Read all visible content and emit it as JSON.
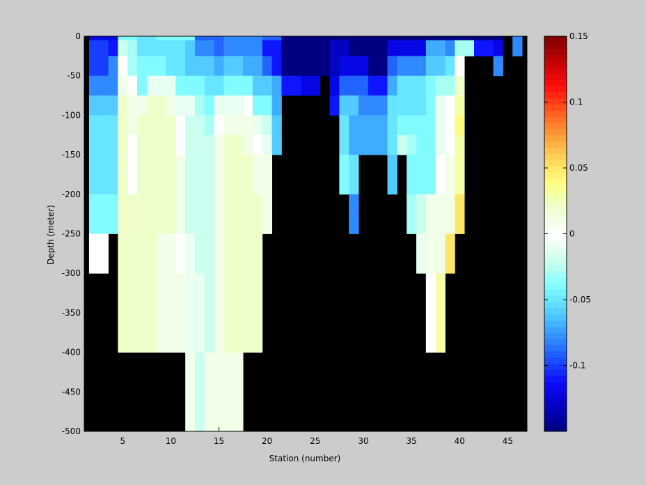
{
  "chart_data": {
    "type": "heatmap",
    "title": "",
    "xlabel": "Station (number)",
    "ylabel": "Depth (meter)",
    "xlim": [
      1,
      47
    ],
    "ylim": [
      -500,
      0
    ],
    "x_ticks": [
      5,
      10,
      15,
      20,
      25,
      30,
      35,
      40,
      45
    ],
    "y_ticks": [
      0,
      -50,
      -100,
      -150,
      -200,
      -250,
      -300,
      -350,
      -400,
      -450,
      -500
    ],
    "colorbar": {
      "range": [
        -0.15,
        0.15
      ],
      "ticks": [
        0.15,
        0.1,
        0.05,
        0,
        -0.05,
        -0.1
      ],
      "tick_labels": [
        "0.15",
        "0.1",
        "0.05",
        "0",
        "-0.05",
        "-0.1"
      ],
      "colormap": "jet"
    },
    "missing_color": "#000000",
    "grid": false,
    "stations": [
      2,
      3,
      4,
      5,
      6,
      7,
      8,
      9,
      10,
      11,
      12,
      13,
      14,
      15,
      16,
      17,
      18,
      19,
      20,
      21,
      22,
      23,
      24,
      25,
      26,
      27,
      28,
      29,
      30,
      31,
      32,
      33,
      34,
      35,
      36,
      37,
      38,
      39,
      40,
      41,
      42,
      43,
      44,
      45,
      46
    ],
    "depth_rows_top": [
      0,
      -5,
      -25,
      -50,
      -75,
      -100,
      -125,
      -150,
      -175,
      -200,
      -225,
      -250,
      -300,
      -400
    ],
    "depth_rows_bottom": [
      -5,
      -25,
      -50,
      -75,
      -100,
      -125,
      -150,
      -175,
      -200,
      -225,
      -250,
      -300,
      -400,
      -500
    ],
    "values": [
      [
        -0.12,
        -0.12,
        -0.12,
        -0.04,
        -0.04,
        -0.05,
        -0.05,
        -0.04,
        -0.04,
        -0.04,
        -0.04,
        -0.09,
        -0.09,
        -0.09,
        -0.08,
        -0.08,
        -0.08,
        -0.08,
        -0.09,
        -0.09,
        -0.15,
        -0.15,
        -0.15,
        -0.15,
        -0.15,
        -0.15,
        -0.15,
        -0.15,
        -0.15,
        -0.15,
        -0.15,
        -0.15,
        -0.15,
        -0.15,
        -0.15,
        -0.15,
        -0.15,
        -0.15,
        -0.15,
        -0.15,
        -0.15,
        -0.15,
        -0.15,
        null,
        -0.08
      ],
      [
        -0.1,
        -0.1,
        -0.11,
        -0.02,
        -0.03,
        -0.05,
        -0.05,
        -0.05,
        -0.05,
        -0.05,
        -0.06,
        -0.08,
        -0.08,
        -0.09,
        -0.08,
        -0.08,
        -0.08,
        -0.08,
        -0.11,
        -0.11,
        -0.15,
        -0.15,
        -0.15,
        -0.15,
        -0.15,
        -0.13,
        -0.13,
        -0.15,
        -0.15,
        -0.15,
        -0.15,
        -0.12,
        -0.12,
        -0.12,
        -0.12,
        -0.07,
        -0.07,
        -0.08,
        -0.03,
        -0.03,
        -0.11,
        -0.11,
        -0.12,
        null,
        -0.08
      ],
      [
        -0.1,
        -0.1,
        -0.08,
        0.0,
        -0.03,
        -0.04,
        -0.04,
        -0.04,
        -0.05,
        -0.05,
        -0.06,
        -0.06,
        -0.06,
        -0.07,
        -0.06,
        -0.06,
        -0.07,
        -0.07,
        -0.09,
        -0.11,
        -0.15,
        -0.15,
        -0.15,
        -0.15,
        -0.15,
        -0.13,
        -0.12,
        -0.12,
        -0.12,
        -0.15,
        -0.15,
        -0.09,
        -0.08,
        -0.08,
        -0.08,
        -0.06,
        -0.06,
        -0.05,
        0.0,
        null,
        null,
        null,
        -0.08,
        null,
        null
      ],
      [
        -0.08,
        -0.08,
        -0.08,
        0.01,
        0.0,
        -0.04,
        -0.01,
        -0.01,
        -0.01,
        -0.04,
        -0.04,
        -0.04,
        -0.05,
        -0.05,
        -0.04,
        -0.04,
        -0.04,
        -0.06,
        -0.06,
        -0.07,
        -0.11,
        -0.11,
        -0.12,
        -0.12,
        null,
        -0.12,
        -0.09,
        -0.09,
        -0.09,
        -0.11,
        -0.11,
        -0.07,
        -0.05,
        -0.05,
        -0.05,
        -0.04,
        -0.03,
        -0.03,
        0.02,
        null,
        null,
        null,
        null,
        null,
        null
      ],
      [
        -0.06,
        -0.06,
        -0.06,
        0.02,
        0.01,
        0.01,
        0.02,
        0.02,
        0.01,
        -0.01,
        -0.01,
        -0.03,
        -0.04,
        -0.01,
        -0.01,
        -0.01,
        0.0,
        -0.04,
        -0.04,
        -0.07,
        null,
        null,
        null,
        null,
        null,
        -0.11,
        -0.06,
        -0.06,
        -0.08,
        -0.08,
        -0.08,
        -0.05,
        -0.05,
        -0.05,
        -0.05,
        -0.04,
        -0.01,
        0.0,
        0.03,
        null,
        null,
        null,
        null,
        null,
        null
      ],
      [
        -0.05,
        -0.05,
        -0.05,
        0.02,
        0.01,
        0.02,
        0.02,
        0.02,
        0.02,
        0.0,
        -0.02,
        -0.02,
        -0.03,
        0.0,
        0.01,
        0.01,
        0.01,
        -0.01,
        -0.02,
        -0.06,
        null,
        null,
        null,
        null,
        null,
        null,
        -0.05,
        -0.07,
        -0.07,
        -0.07,
        -0.07,
        -0.05,
        -0.04,
        -0.04,
        -0.04,
        -0.04,
        -0.01,
        0.0,
        0.04,
        null,
        null,
        null,
        null,
        null,
        null
      ],
      [
        -0.05,
        -0.05,
        -0.05,
        0.02,
        0.0,
        0.02,
        0.02,
        0.02,
        0.02,
        0.0,
        -0.02,
        -0.02,
        -0.02,
        0.01,
        0.02,
        0.02,
        0.01,
        0.0,
        -0.01,
        -0.06,
        null,
        null,
        null,
        null,
        null,
        null,
        -0.05,
        -0.07,
        -0.07,
        -0.07,
        -0.07,
        -0.05,
        -0.02,
        -0.03,
        -0.04,
        -0.04,
        -0.01,
        0.0,
        0.03,
        null,
        null,
        null,
        null,
        null,
        null
      ],
      [
        -0.05,
        -0.05,
        -0.05,
        0.02,
        0.0,
        0.02,
        0.02,
        0.02,
        0.02,
        0.01,
        -0.02,
        -0.02,
        -0.02,
        0.01,
        0.02,
        0.02,
        0.02,
        0.01,
        0.01,
        null,
        null,
        null,
        null,
        null,
        null,
        null,
        -0.04,
        -0.05,
        null,
        null,
        null,
        -0.06,
        null,
        -0.04,
        -0.04,
        -0.04,
        0.0,
        0.01,
        0.03,
        null,
        null,
        null,
        null,
        null,
        null
      ],
      [
        -0.05,
        -0.05,
        -0.05,
        0.02,
        0.0,
        0.02,
        0.02,
        0.02,
        0.02,
        0.01,
        -0.02,
        -0.02,
        -0.02,
        0.01,
        0.02,
        0.02,
        0.02,
        0.01,
        0.01,
        null,
        null,
        null,
        null,
        null,
        null,
        null,
        -0.04,
        -0.05,
        null,
        null,
        null,
        -0.06,
        null,
        -0.04,
        -0.04,
        -0.04,
        0.0,
        0.01,
        0.03,
        null,
        null,
        null,
        null,
        null,
        null
      ],
      [
        -0.04,
        -0.04,
        -0.04,
        0.02,
        0.02,
        0.02,
        0.02,
        0.02,
        0.02,
        0.01,
        -0.02,
        -0.02,
        -0.02,
        0.01,
        0.02,
        0.02,
        0.02,
        0.02,
        0.01,
        null,
        null,
        null,
        null,
        null,
        null,
        null,
        null,
        -0.08,
        null,
        null,
        null,
        null,
        null,
        -0.03,
        -0.02,
        0.01,
        0.01,
        0.01,
        0.05,
        null,
        null,
        null,
        null,
        null,
        null
      ],
      [
        -0.04,
        -0.04,
        -0.04,
        0.02,
        0.02,
        0.02,
        0.02,
        0.02,
        0.02,
        0.01,
        -0.02,
        -0.02,
        -0.02,
        0.01,
        0.02,
        0.02,
        0.02,
        0.02,
        0.01,
        null,
        null,
        null,
        null,
        null,
        null,
        null,
        null,
        -0.08,
        null,
        null,
        null,
        null,
        null,
        -0.03,
        -0.02,
        0.01,
        0.01,
        0.01,
        0.05,
        null,
        null,
        null,
        null,
        null,
        null
      ],
      [
        0.0,
        0.0,
        null,
        0.02,
        0.02,
        0.02,
        0.02,
        0.01,
        0.01,
        0.0,
        -0.01,
        -0.02,
        -0.02,
        0.01,
        0.02,
        0.02,
        0.02,
        0.02,
        null,
        null,
        null,
        null,
        null,
        null,
        null,
        null,
        null,
        null,
        null,
        null,
        null,
        null,
        null,
        null,
        -0.01,
        0.01,
        0.01,
        0.05,
        null,
        null,
        null,
        null,
        null,
        null,
        null
      ],
      [
        null,
        null,
        null,
        0.02,
        0.02,
        0.02,
        0.02,
        0.01,
        0.01,
        0.01,
        -0.01,
        -0.01,
        -0.02,
        0.01,
        0.02,
        0.02,
        0.02,
        0.02,
        null,
        null,
        null,
        null,
        null,
        null,
        null,
        null,
        null,
        null,
        null,
        null,
        null,
        null,
        null,
        null,
        null,
        0.0,
        0.03,
        null,
        null,
        null,
        null,
        null,
        null,
        null,
        null
      ],
      [
        null,
        null,
        null,
        null,
        null,
        null,
        null,
        null,
        null,
        null,
        0.01,
        -0.02,
        0.01,
        0.01,
        0.01,
        0.01,
        null,
        null,
        null,
        null,
        null,
        null,
        null,
        null,
        null,
        null,
        null,
        null,
        null,
        null,
        null,
        null,
        null,
        null,
        null,
        null,
        null,
        null,
        null,
        null,
        null,
        null,
        null,
        null,
        null
      ]
    ]
  }
}
